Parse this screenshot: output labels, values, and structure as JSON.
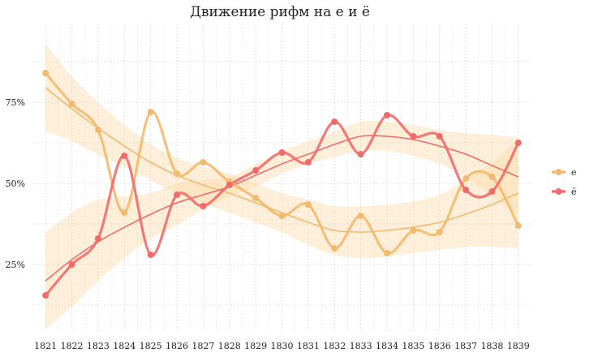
{
  "chart_data": {
    "type": "line",
    "title": "Движение рифм на е и ё",
    "xlabel": "",
    "ylabel": "",
    "x": [
      1821,
      1822,
      1823,
      1824,
      1825,
      1826,
      1827,
      1828,
      1829,
      1830,
      1831,
      1832,
      1833,
      1834,
      1835,
      1836,
      1837,
      1838,
      1839
    ],
    "xlim": [
      1820.5,
      1839.5
    ],
    "ylim": [
      0.04,
      0.99
    ],
    "y_ticks": [
      0.25,
      0.5,
      0.75
    ],
    "y_tick_labels": [
      "25%",
      "50%",
      "75%"
    ],
    "grid": true,
    "legend_position": "right",
    "series": [
      {
        "name": "е",
        "color": "#F2BA6E",
        "values": [
          0.84,
          0.745,
          0.665,
          0.41,
          0.72,
          0.53,
          0.565,
          0.505,
          0.455,
          0.4,
          0.435,
          0.3,
          0.4,
          0.285,
          0.355,
          0.35,
          0.515,
          0.52,
          0.37
        ],
        "trend": [
          0.795,
          0.73,
          0.67,
          0.615,
          0.565,
          0.525,
          0.495,
          0.47,
          0.44,
          0.41,
          0.38,
          0.355,
          0.35,
          0.355,
          0.365,
          0.38,
          0.405,
          0.435,
          0.47
        ],
        "band_low": [
          0.66,
          0.63,
          0.59,
          0.55,
          0.51,
          0.47,
          0.44,
          0.41,
          0.38,
          0.35,
          0.31,
          0.28,
          0.27,
          0.275,
          0.285,
          0.295,
          0.305,
          0.305,
          0.3
        ],
        "band_high": [
          0.93,
          0.83,
          0.75,
          0.68,
          0.62,
          0.58,
          0.55,
          0.53,
          0.5,
          0.47,
          0.45,
          0.43,
          0.43,
          0.435,
          0.445,
          0.465,
          0.51,
          0.565,
          0.64
        ]
      },
      {
        "name": "ё",
        "color": "#F26B6B",
        "values": [
          0.155,
          0.25,
          0.33,
          0.585,
          0.28,
          0.465,
          0.43,
          0.495,
          0.54,
          0.595,
          0.565,
          0.69,
          0.59,
          0.71,
          0.645,
          0.645,
          0.48,
          0.475,
          0.625
        ],
        "trend": [
          0.2,
          0.265,
          0.32,
          0.365,
          0.405,
          0.44,
          0.465,
          0.49,
          0.525,
          0.56,
          0.59,
          0.62,
          0.645,
          0.645,
          0.635,
          0.615,
          0.59,
          0.555,
          0.52
        ],
        "band_low": [
          0.05,
          0.12,
          0.2,
          0.27,
          0.33,
          0.37,
          0.42,
          0.46,
          0.49,
          0.53,
          0.56,
          0.58,
          0.6,
          0.6,
          0.585,
          0.56,
          0.52,
          0.46,
          0.4
        ],
        "band_high": [
          0.35,
          0.41,
          0.45,
          0.46,
          0.47,
          0.5,
          0.51,
          0.52,
          0.56,
          0.6,
          0.63,
          0.66,
          0.69,
          0.69,
          0.68,
          0.665,
          0.655,
          0.65,
          0.64
        ]
      }
    ]
  }
}
